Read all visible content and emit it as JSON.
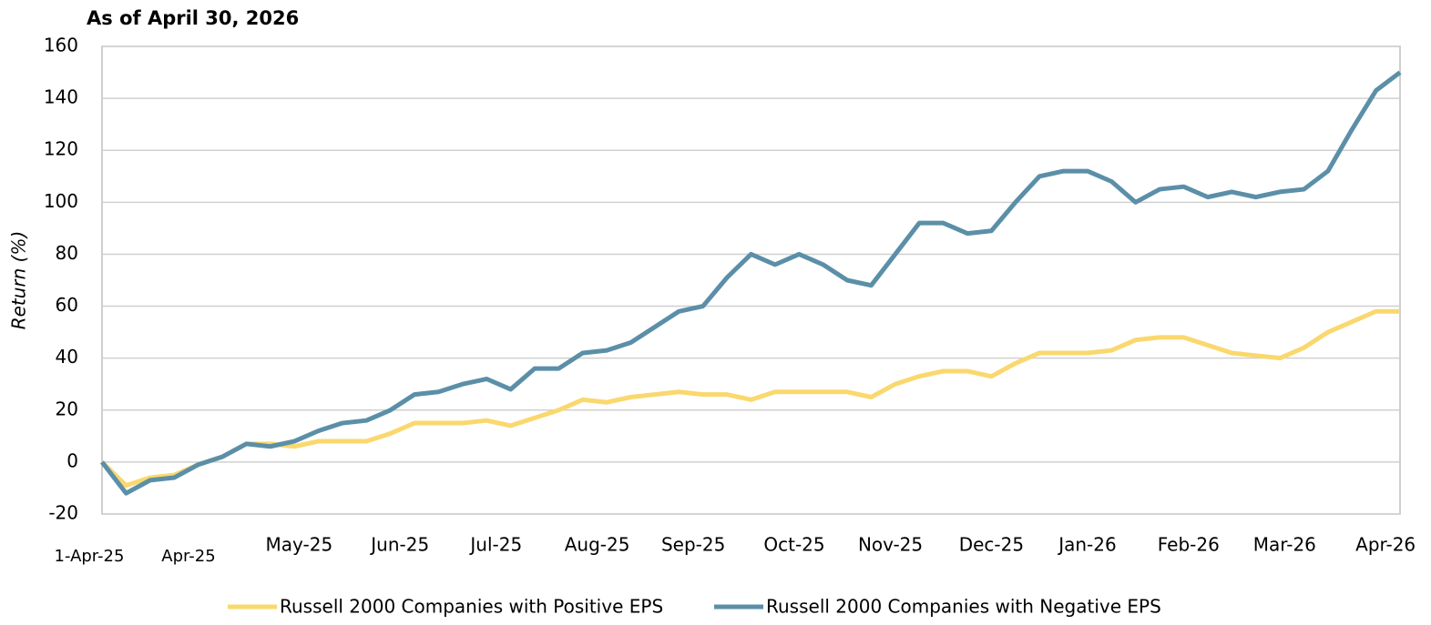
{
  "chart_data": {
    "type": "line",
    "title": "As of April 30, 2026",
    "y_label": "Return (%)",
    "x": [
      0,
      5,
      10,
      15,
      20,
      25,
      30,
      35,
      40,
      45,
      50,
      55,
      60,
      65,
      70,
      75,
      80,
      85,
      90,
      95,
      100,
      105,
      110,
      115,
      120,
      125,
      130,
      135,
      140,
      145,
      150,
      155,
      160,
      165,
      170,
      175,
      180,
      185,
      190,
      195,
      200,
      205,
      210,
      215,
      220,
      225,
      230,
      235,
      240,
      245,
      250,
      255,
      260,
      265,
      270
    ],
    "series": [
      {
        "name": "Russell 2000 Companies with Positive EPS",
        "color": "#fad86e",
        "values": [
          0,
          -9,
          -6,
          -5,
          -1,
          2,
          7,
          7,
          6,
          8,
          8,
          8,
          11,
          15,
          15,
          15,
          16,
          14,
          17,
          20,
          24,
          23,
          25,
          26,
          27,
          26,
          26,
          24,
          27,
          27,
          27,
          27,
          25,
          30,
          33,
          35,
          35,
          33,
          38,
          42,
          42,
          42,
          43,
          47,
          48,
          48,
          45,
          42,
          41,
          40,
          44,
          50,
          54,
          58,
          58
        ]
      },
      {
        "name": "Russell 2000 Companies with Negative EPS",
        "color": "#5b8fa8",
        "values": [
          0,
          -12,
          -7,
          -6,
          -1,
          2,
          7,
          6,
          8,
          12,
          15,
          16,
          20,
          26,
          27,
          30,
          32,
          28,
          36,
          36,
          42,
          43,
          46,
          52,
          58,
          60,
          71,
          80,
          76,
          80,
          76,
          70,
          68,
          80,
          92,
          92,
          88,
          89,
          100,
          110,
          112,
          112,
          108,
          100,
          105,
          106,
          102,
          104,
          102,
          104,
          105,
          112,
          128,
          143,
          150
        ]
      }
    ],
    "xlim": [
      0,
      270
    ],
    "xticks": [
      {
        "value": 0,
        "label": "1-Apr-25"
      },
      {
        "value": 18,
        "label": "Apr-25"
      },
      {
        "value": 41,
        "label": "May-25"
      },
      {
        "value": 62,
        "label": "Jun-25"
      },
      {
        "value": 82,
        "label": "Jul-25"
      },
      {
        "value": 103,
        "label": "Aug-25"
      },
      {
        "value": 123,
        "label": "Sep-25"
      },
      {
        "value": 144,
        "label": "Oct-25"
      },
      {
        "value": 164,
        "label": "Nov-25"
      },
      {
        "value": 185,
        "label": "Dec-25"
      },
      {
        "value": 205,
        "label": "Jan-26"
      },
      {
        "value": 226,
        "label": "Feb-26"
      },
      {
        "value": 246,
        "label": "Mar-26"
      },
      {
        "value": 267,
        "label": "Apr-26"
      }
    ],
    "ylim": [
      -20,
      160
    ],
    "yticks": [
      -20,
      0,
      20,
      40,
      60,
      80,
      100,
      120,
      140,
      160
    ],
    "grid": true
  }
}
